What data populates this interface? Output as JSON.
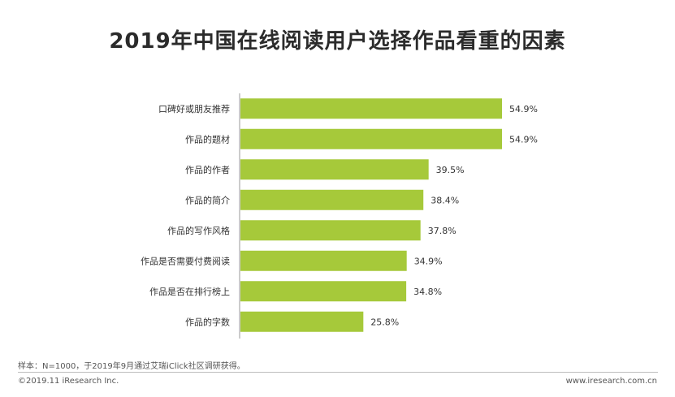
{
  "chart_data": {
    "type": "bar",
    "orientation": "horizontal",
    "title": "2019年中国在线阅读用户选择作品看重的因素",
    "categories": [
      "口碑好或朋友推荐",
      "作品的题材",
      "作品的作者",
      "作品的简介",
      "作品的写作风格",
      "作品是否需要付费阅读",
      "作品是否在排行榜上",
      "作品的字数"
    ],
    "values": [
      54.9,
      54.9,
      39.5,
      38.4,
      37.8,
      34.9,
      34.8,
      25.8
    ],
    "value_labels": [
      "54.9%",
      "54.9%",
      "39.5%",
      "38.4%",
      "37.8%",
      "34.9%",
      "34.8%",
      "25.8%"
    ],
    "unit": "%",
    "xlim": [
      0,
      54.9
    ],
    "grid": false,
    "legend": "none",
    "bar_color": "#a6c93a",
    "axis_color": "#999999"
  },
  "footer": {
    "note": "样本：N=1000，于2019年9月通过艾瑞iClick社区调研获得。",
    "copyright": "©2019.11 iResearch Inc.",
    "site": "www.iresearch.com.cn"
  }
}
